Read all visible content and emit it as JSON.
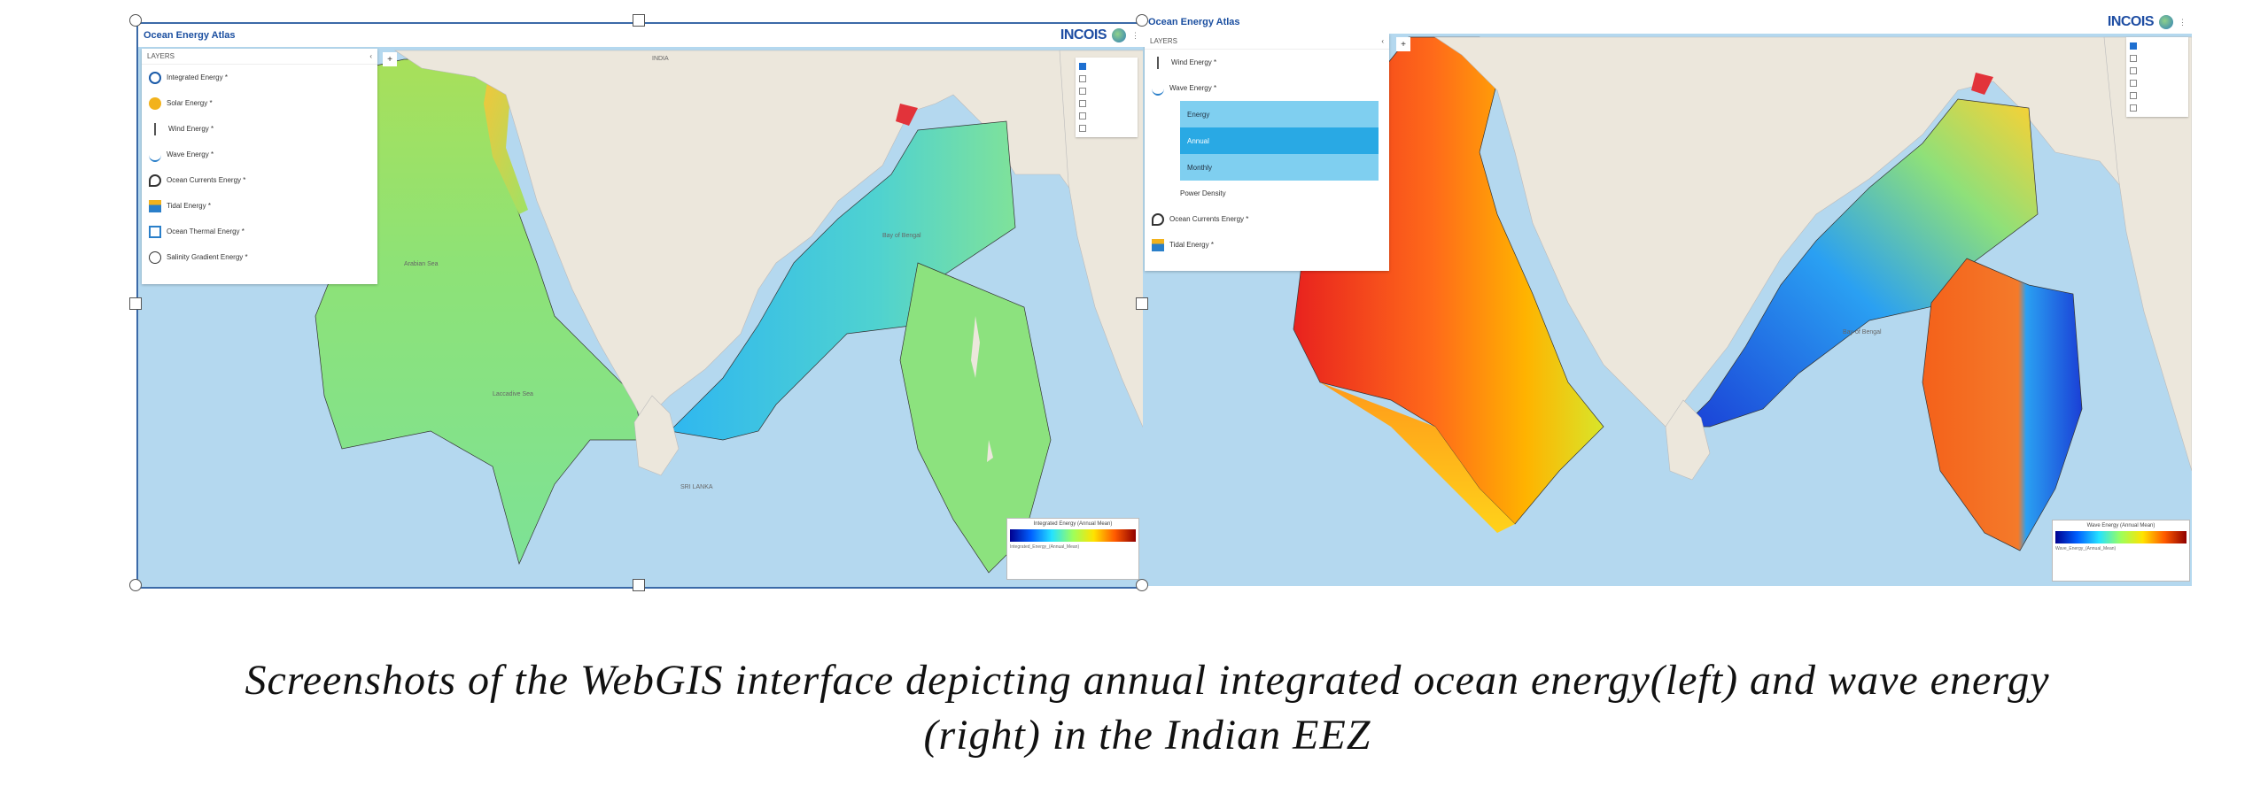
{
  "left": {
    "header_title": "Ocean Energy Atlas",
    "logo": "INCOIS",
    "panel_title": "LAYERS",
    "layers": [
      "Integrated Energy *",
      "Solar Energy *",
      "Wind Energy *",
      "Wave Energy *",
      "Ocean Currents Energy *",
      "Tidal Energy *",
      "Ocean Thermal Energy *",
      "Salinity Gradient Energy *"
    ],
    "legend_title": "Integrated Energy (Annual Mean)",
    "legend_var": "Integrated_Energy_(Annual_Mean)",
    "place_labels": [
      "INDIA",
      "Arabian Sea",
      "Bay of Bengal",
      "Laccadive Sea",
      "SRI LANKA"
    ]
  },
  "right": {
    "header_title": "Ocean Energy Atlas",
    "logo": "INCOIS",
    "panel_title": "LAYERS",
    "layers_top": [
      "Wind Energy *",
      "Wave Energy *"
    ],
    "sub_items": [
      "Energy",
      "Annual",
      "Monthly"
    ],
    "sub_extra": "Power Density",
    "layers_bottom": [
      "Ocean Currents Energy *",
      "Tidal Energy *"
    ],
    "legend_title": "Wave Energy (Annual Mean)",
    "legend_var": "Wave_Energy_(Annual_Mean)",
    "place_labels": [
      "Bay of Bengal"
    ]
  },
  "colors": {
    "ocean": "#b4d8ef",
    "land": "#ece7dc",
    "selected_item": "#29a9e4",
    "submenu_bg": "#7fcff0",
    "frame_border": "#3b6aa8"
  },
  "caption": {
    "line1": "Screenshots of the WebGIS  interface depicting annual integrated ocean energy(left) and wave energy",
    "line2": "(right) in the Indian EEZ"
  }
}
